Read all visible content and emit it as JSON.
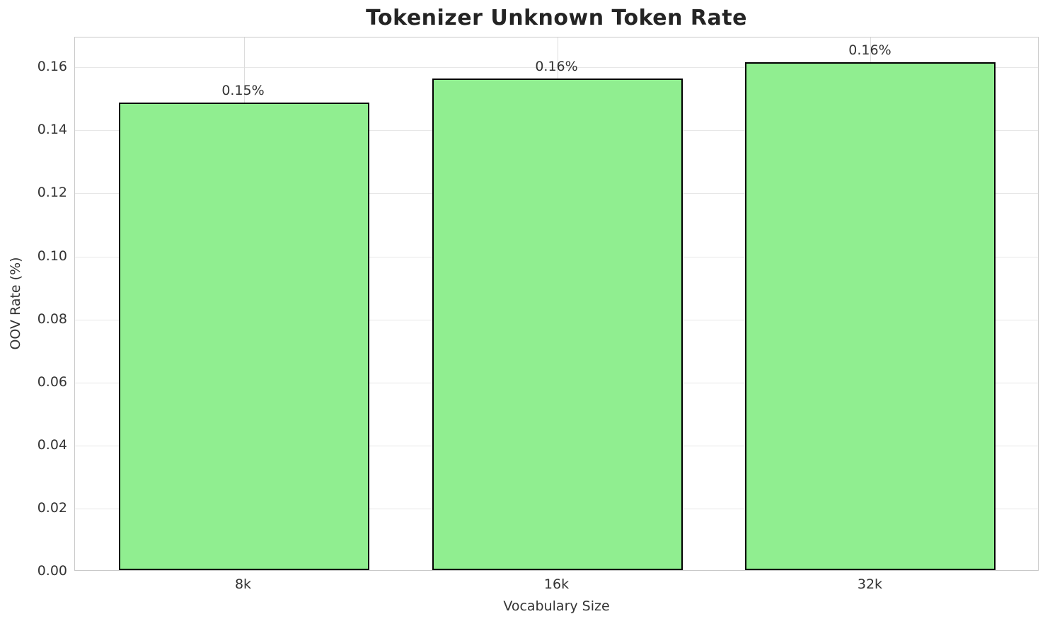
{
  "chart_data": {
    "type": "bar",
    "title": "Tokenizer Unknown Token Rate",
    "xlabel": "Vocabulary Size",
    "ylabel": "OOV Rate (%)",
    "categories": [
      "8k",
      "16k",
      "32k"
    ],
    "values": [
      0.1484,
      0.156,
      0.1612
    ],
    "bar_value_labels": [
      "0.15%",
      "0.16%",
      "0.16%"
    ],
    "yticks": [
      0.0,
      0.02,
      0.04,
      0.06,
      0.08,
      0.1,
      0.12,
      0.14,
      0.16
    ],
    "ytick_labels": [
      "0.00",
      "0.02",
      "0.04",
      "0.06",
      "0.08",
      "0.10",
      "0.12",
      "0.14",
      "0.16"
    ],
    "ylim": [
      0,
      0.1695
    ],
    "grid": true,
    "legend": "none",
    "bar_color": "#90EE90",
    "bar_edge_color": "#000000",
    "title_color": "#242424",
    "text_color": "#333333"
  }
}
